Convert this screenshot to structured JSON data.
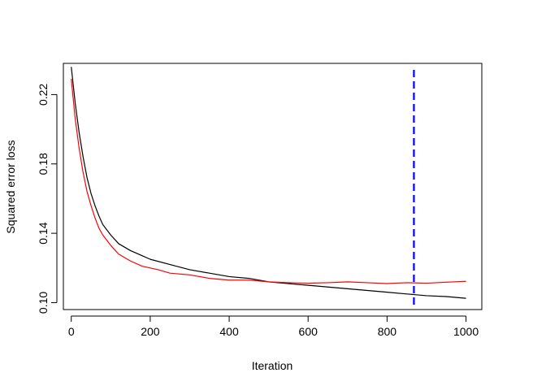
{
  "chart_data": {
    "type": "line",
    "title": "",
    "xlabel": "Iteration",
    "ylabel": "Squared error loss",
    "xlim": [
      -20,
      1040
    ],
    "ylim": [
      0.096,
      0.238
    ],
    "xticks": [
      0,
      200,
      400,
      600,
      800,
      1000
    ],
    "xtick_labels": [
      "0",
      "200",
      "400",
      "600",
      "800",
      "1000"
    ],
    "yticks": [
      0.1,
      0.14,
      0.18,
      0.22
    ],
    "ytick_labels": [
      "0.10",
      "0.14",
      "0.18",
      "0.22"
    ],
    "grid": false,
    "legend": "none",
    "series": [
      {
        "color": "#000000",
        "x": [
          0,
          10,
          20,
          30,
          40,
          50,
          60,
          70,
          80,
          100,
          120,
          150,
          180,
          200,
          250,
          300,
          350,
          400,
          450,
          500,
          550,
          600,
          650,
          700,
          750,
          800,
          850,
          900,
          950,
          1000
        ],
        "values": [
          0.236,
          0.215,
          0.198,
          0.184,
          0.172,
          0.163,
          0.156,
          0.15,
          0.145,
          0.139,
          0.134,
          0.13,
          0.127,
          0.125,
          0.122,
          0.119,
          0.117,
          0.115,
          0.114,
          0.112,
          0.111,
          0.11,
          0.109,
          0.108,
          0.107,
          0.106,
          0.105,
          0.104,
          0.1035,
          0.1025
        ]
      },
      {
        "color": "#ff0000",
        "x": [
          0,
          10,
          20,
          30,
          40,
          50,
          60,
          70,
          80,
          100,
          120,
          150,
          180,
          200,
          220,
          250,
          300,
          350,
          400,
          450,
          500,
          550,
          600,
          650,
          700,
          750,
          800,
          850,
          900,
          950,
          1000
        ],
        "values": [
          0.229,
          0.206,
          0.189,
          0.175,
          0.164,
          0.156,
          0.149,
          0.143,
          0.139,
          0.133,
          0.128,
          0.124,
          0.121,
          0.12,
          0.119,
          0.117,
          0.116,
          0.114,
          0.113,
          0.113,
          0.112,
          0.1115,
          0.1112,
          0.1115,
          0.112,
          0.1115,
          0.111,
          0.1115,
          0.1112,
          0.1118,
          0.1123
        ]
      }
    ],
    "reference_line": {
      "orientation": "vertical",
      "x": 868,
      "color": "#0000ff",
      "style": "dashed"
    }
  }
}
